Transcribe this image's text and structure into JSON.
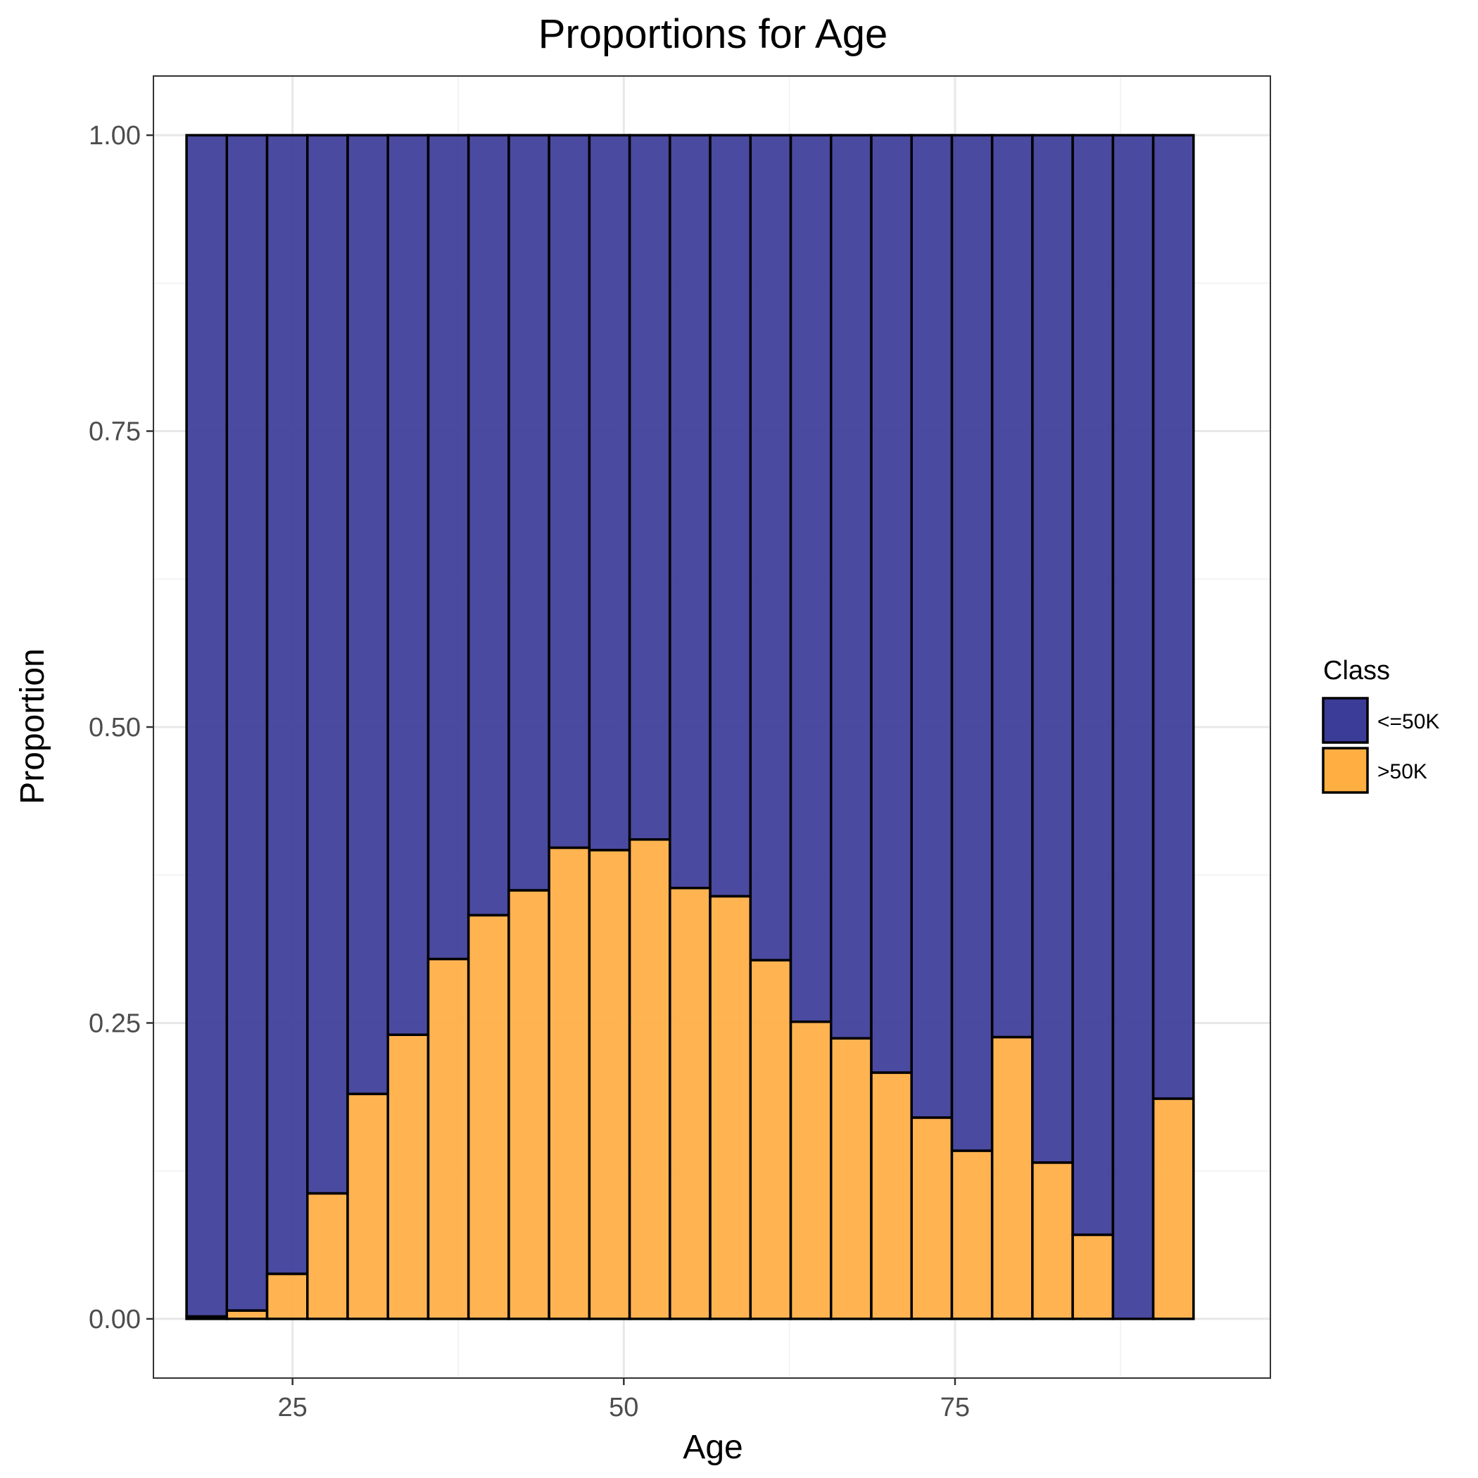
{
  "chart_data": {
    "type": "bar",
    "stacked": true,
    "title": "Proportions for Age",
    "xlabel": "Age",
    "ylabel": "Proportion",
    "xlim": [
      14.5,
      98.8
    ],
    "ylim": [
      -0.05,
      1.05
    ],
    "x_ticks": [
      25,
      50,
      75
    ],
    "x_tick_labels": [
      "25",
      "50",
      "75"
    ],
    "x_minor": [
      12.5,
      37.5,
      62.5,
      87.5
    ],
    "y_ticks": [
      0,
      0.25,
      0.5,
      0.75,
      1.0
    ],
    "y_tick_labels": [
      "0.00",
      "0.25",
      "0.50",
      "0.75",
      "1.00"
    ],
    "y_minor": [
      0.125,
      0.375,
      0.625,
      0.875
    ],
    "grid": true,
    "legend": {
      "title": "Class",
      "position": "right",
      "entries": [
        "<=50K",
        ">50K"
      ]
    },
    "bin_width": 3.04,
    "x_start": 17,
    "bins": [
      {
        "x": 18.52,
        "gt50k": 0.002
      },
      {
        "x": 21.56,
        "gt50k": 0.007
      },
      {
        "x": 24.6,
        "gt50k": 0.038
      },
      {
        "x": 27.64,
        "gt50k": 0.106
      },
      {
        "x": 30.68,
        "gt50k": 0.19
      },
      {
        "x": 33.72,
        "gt50k": 0.24
      },
      {
        "x": 36.76,
        "gt50k": 0.304
      },
      {
        "x": 39.8,
        "gt50k": 0.341
      },
      {
        "x": 42.84,
        "gt50k": 0.362
      },
      {
        "x": 45.88,
        "gt50k": 0.398
      },
      {
        "x": 48.92,
        "gt50k": 0.396
      },
      {
        "x": 51.96,
        "gt50k": 0.405
      },
      {
        "x": 55.0,
        "gt50k": 0.364
      },
      {
        "x": 58.04,
        "gt50k": 0.357
      },
      {
        "x": 61.08,
        "gt50k": 0.303
      },
      {
        "x": 64.12,
        "gt50k": 0.251
      },
      {
        "x": 67.16,
        "gt50k": 0.237
      },
      {
        "x": 70.2,
        "gt50k": 0.208
      },
      {
        "x": 73.24,
        "gt50k": 0.17
      },
      {
        "x": 76.28,
        "gt50k": 0.142
      },
      {
        "x": 79.32,
        "gt50k": 0.238
      },
      {
        "x": 82.36,
        "gt50k": 0.132
      },
      {
        "x": 85.4,
        "gt50k": 0.071
      },
      {
        "x": 88.44,
        "gt50k": 0.0
      },
      {
        "x": 91.48,
        "gt50k": 0.186
      }
    ],
    "series": [
      {
        "name": "<=50K",
        "color": "#3b3b98"
      },
      {
        "name": ">50K",
        "color": "#ffae42"
      }
    ]
  }
}
